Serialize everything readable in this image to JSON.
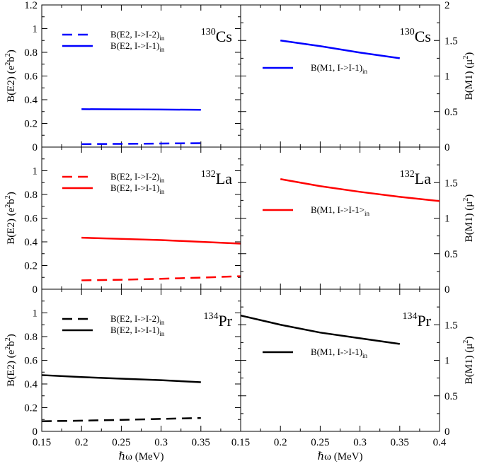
{
  "chart_data": [
    {
      "type": "line",
      "panel": "top-left",
      "nucleus": {
        "mass": "130",
        "symbol": "Cs"
      },
      "ylabel": "B(E2) (e2b2)",
      "xlabel": "",
      "xlim": [
        0.15,
        0.4
      ],
      "ylim": [
        0,
        1.2
      ],
      "yticks": [
        "0",
        "0.2",
        "0.4",
        "0.6",
        "0.8",
        "1",
        "1.2"
      ],
      "legend_position": "top-left",
      "series": [
        {
          "name": "B(E2, I->I-2)in",
          "label_main": "B(E2, I->I-2)",
          "label_sub": "in",
          "color": "#0000ff",
          "dash": "dashed",
          "x": [
            0.2,
            0.25,
            0.3,
            0.35
          ],
          "y": [
            0.025,
            0.027,
            0.03,
            0.033
          ]
        },
        {
          "name": "B(E2, I->I-1)in",
          "label_main": "B(E2, I->I-1)",
          "label_sub": "in",
          "color": "#0000ff",
          "dash": "solid",
          "x": [
            0.2,
            0.25,
            0.3,
            0.35
          ],
          "y": [
            0.32,
            0.319,
            0.317,
            0.315
          ]
        }
      ]
    },
    {
      "type": "line",
      "panel": "top-right",
      "nucleus": {
        "mass": "130",
        "symbol": "Cs"
      },
      "ylabel": "B(M1) (μ2)",
      "xlabel": "",
      "xlim": [
        0.15,
        0.4
      ],
      "ylim": [
        0,
        2
      ],
      "yticks": [
        "0",
        "0.5",
        "1",
        "1.5",
        "2"
      ],
      "legend_position": "center-left",
      "series": [
        {
          "name": "B(M1, I->I-1)in",
          "label_main": "B(M1, I->I-1)",
          "label_sub": "in",
          "color": "#0000ff",
          "dash": "solid",
          "x": [
            0.2,
            0.25,
            0.3,
            0.35
          ],
          "y": [
            1.5,
            1.42,
            1.33,
            1.25
          ]
        }
      ]
    },
    {
      "type": "line",
      "panel": "middle-left",
      "nucleus": {
        "mass": "132",
        "symbol": "La"
      },
      "ylabel": "B(E2) (e2b2)",
      "xlabel": "",
      "xlim": [
        0.15,
        0.4
      ],
      "ylim": [
        0,
        1.2
      ],
      "yticks": [
        "0",
        "0.2",
        "0.4",
        "0.6",
        "0.8",
        "1"
      ],
      "legend_position": "top-left",
      "series": [
        {
          "name": "B(E2, I->I-2)in",
          "label_main": "B(E2, I->I-2)",
          "label_sub": "in",
          "color": "#ff0000",
          "dash": "dashed",
          "x": [
            0.2,
            0.25,
            0.3,
            0.35,
            0.4
          ],
          "y": [
            0.075,
            0.08,
            0.088,
            0.098,
            0.11
          ]
        },
        {
          "name": "B(E2, I->I-1)in",
          "label_main": "B(E2, I->I-1)",
          "label_sub": "in",
          "color": "#ff0000",
          "dash": "solid",
          "x": [
            0.2,
            0.25,
            0.3,
            0.35,
            0.4
          ],
          "y": [
            0.435,
            0.425,
            0.415,
            0.4,
            0.385
          ]
        }
      ]
    },
    {
      "type": "line",
      "panel": "middle-right",
      "nucleus": {
        "mass": "132",
        "symbol": "La"
      },
      "ylabel": "B(M1) (μ2)",
      "xlabel": "",
      "xlim": [
        0.15,
        0.4
      ],
      "ylim": [
        0,
        2
      ],
      "yticks": [
        "0",
        "0.5",
        "1",
        "1.5"
      ],
      "legend_position": "center-left",
      "series": [
        {
          "name": "B(M1, I->I-1>in",
          "label_main": "B(M1, I->I-1>",
          "label_sub": "in",
          "color": "#ff0000",
          "dash": "solid",
          "x": [
            0.2,
            0.25,
            0.3,
            0.35,
            0.4
          ],
          "y": [
            1.55,
            1.45,
            1.37,
            1.3,
            1.24
          ]
        }
      ]
    },
    {
      "type": "line",
      "panel": "bottom-left",
      "nucleus": {
        "mass": "134",
        "symbol": "Pr"
      },
      "ylabel": "B(E2) (e2b2)",
      "xlabel": "ℏω (MeV)",
      "xlim": [
        0.15,
        0.4
      ],
      "ylim": [
        0,
        1.2
      ],
      "xticks": [
        "0.15",
        "0.2",
        "0.25",
        "0.3",
        "0.35"
      ],
      "yticks": [
        "0",
        "0.2",
        "0.4",
        "0.6",
        "0.8",
        "1"
      ],
      "legend_position": "top-left",
      "series": [
        {
          "name": "B(E2, I->I-2)in",
          "label_main": "B(E2, I->I-2)",
          "label_sub": "in",
          "color": "#000000",
          "dash": "dashed",
          "x": [
            0.15,
            0.2,
            0.25,
            0.3,
            0.35
          ],
          "y": [
            0.085,
            0.09,
            0.097,
            0.105,
            0.113
          ]
        },
        {
          "name": "B(E2, I->I-1)in",
          "label_main": "B(E2, I->I-1)",
          "label_sub": "in",
          "color": "#000000",
          "dash": "solid",
          "x": [
            0.15,
            0.2,
            0.25,
            0.3,
            0.35
          ],
          "y": [
            0.475,
            0.458,
            0.445,
            0.432,
            0.415
          ]
        }
      ]
    },
    {
      "type": "line",
      "panel": "bottom-right",
      "nucleus": {
        "mass": "134",
        "symbol": "Pr"
      },
      "ylabel": "B(M1) (μ2)",
      "xlabel": "ℏω (MeV)",
      "xlim": [
        0.15,
        0.4
      ],
      "ylim": [
        0,
        2
      ],
      "xticks": [
        "0.15",
        "0.2",
        "0.25",
        "0.3",
        "0.35",
        "0.4"
      ],
      "yticks": [
        "0",
        "0.5",
        "1",
        "1.5"
      ],
      "legend_position": "center-left",
      "series": [
        {
          "name": "B(M1, I->I-1)in",
          "label_main": "B(M1, I->I-1)",
          "label_sub": "in",
          "color": "#000000",
          "dash": "solid",
          "x": [
            0.15,
            0.2,
            0.25,
            0.3,
            0.35
          ],
          "y": [
            1.63,
            1.5,
            1.39,
            1.31,
            1.23
          ]
        }
      ]
    }
  ]
}
